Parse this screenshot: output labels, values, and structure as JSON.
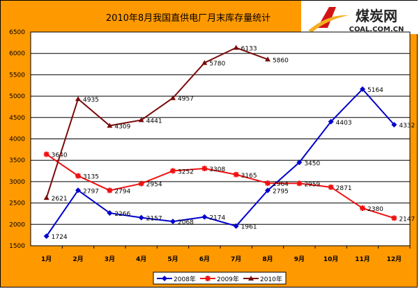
{
  "logo": {
    "name": "煤炭网",
    "domain": "COAL.COM.CN"
  },
  "chart_data": {
    "type": "line",
    "title": "2010年8月我国直供电厂月末库存量统计",
    "categories": [
      "1月",
      "2月",
      "3月",
      "4月",
      "5月",
      "6月",
      "7月",
      "8月",
      "9月",
      "10月",
      "11月",
      "12月"
    ],
    "ylim": [
      1500,
      6500
    ],
    "yticks": [
      1500,
      2000,
      2500,
      3000,
      3500,
      4000,
      4500,
      5000,
      5500,
      6000,
      6500
    ],
    "grid": true,
    "legend": "bottom",
    "background": "#FF9900",
    "series": [
      {
        "name": "2008年",
        "color": "#0000CC",
        "marker": "diamond",
        "values": [
          1724,
          2797,
          2266,
          2157,
          2068,
          2174,
          1961,
          2795,
          3450,
          4403,
          5164,
          4332
        ]
      },
      {
        "name": "2009年",
        "color": "#EE1111",
        "marker": "star",
        "values": [
          3640,
          3135,
          2794,
          2954,
          3252,
          3308,
          3165,
          2964,
          2959,
          2871,
          2380,
          2147
        ]
      },
      {
        "name": "2010年",
        "color": "#7A0A0A",
        "marker": "triangle",
        "values": [
          2621,
          4935,
          4309,
          4441,
          4957,
          5780,
          6133,
          5860,
          null,
          null,
          null,
          null
        ]
      }
    ]
  }
}
